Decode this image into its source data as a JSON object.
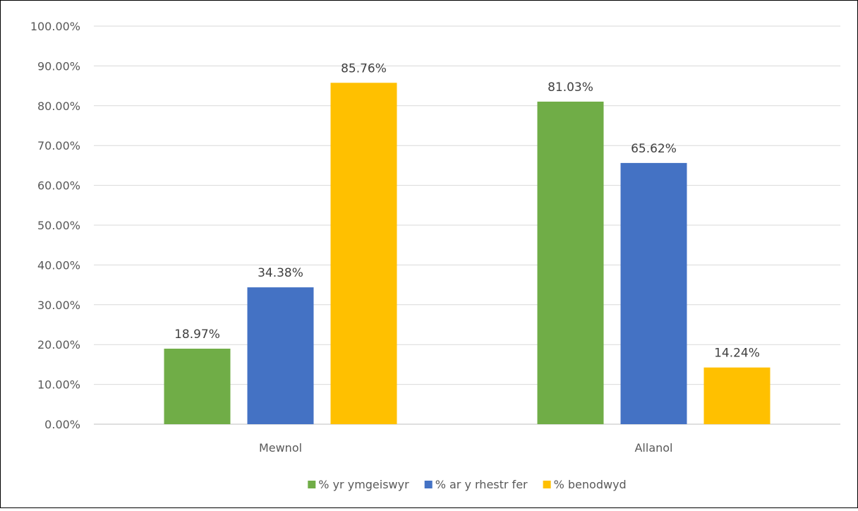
{
  "chart_data": {
    "type": "bar",
    "categories": [
      "Mewnol",
      "Allanol"
    ],
    "series": [
      {
        "name": "% yr ymgeiswyr",
        "values": [
          18.97,
          81.03
        ],
        "color": "#70AD47"
      },
      {
        "name": "% ar y rhestr fer",
        "values": [
          34.38,
          65.62
        ],
        "color": "#4472C4"
      },
      {
        "name": "% benodwyd",
        "values": [
          85.76,
          14.24
        ],
        "color": "#FFC000"
      }
    ],
    "data_labels": [
      [
        "18.97%",
        "81.03%"
      ],
      [
        "34.38%",
        "65.62%"
      ],
      [
        "85.76%",
        "14.24%"
      ]
    ],
    "yticks": [
      "0.00%",
      "10.00%",
      "20.00%",
      "30.00%",
      "40.00%",
      "50.00%",
      "60.00%",
      "70.00%",
      "80.00%",
      "90.00%",
      "100.00%"
    ],
    "ylim": [
      0,
      100
    ],
    "ytick_step": 10,
    "grid": true,
    "legend_position": "bottom",
    "title": "",
    "xlabel": "",
    "ylabel": ""
  }
}
